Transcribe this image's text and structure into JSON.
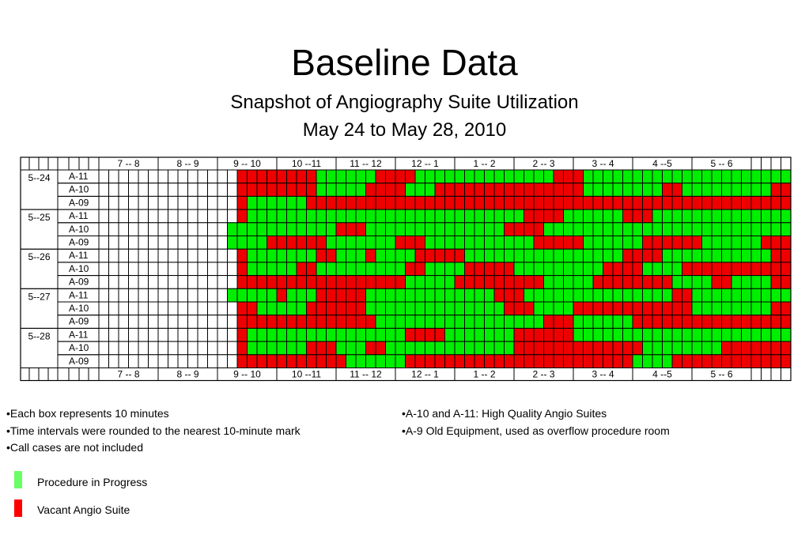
{
  "header": {
    "title": "Baseline Data",
    "subtitle": "Snapshot of Angiography Suite Utilization",
    "date_range": "May 24 to May 28, 2010"
  },
  "notes": {
    "left": [
      "•Each box represents 10  minutes",
      "•Time intervals were rounded to the nearest 10-minute mark",
      "•Call cases are not included"
    ],
    "right": [
      "•A-10 and A-11: High Quality Angio Suites",
      "•A-9 Old Equipment, used as overflow procedure room"
    ]
  },
  "legend": [
    {
      "label": "Procedure in Progress",
      "color": "#66ff66"
    },
    {
      "label": "Vacant Angio Suite",
      "color": "#ff0000"
    }
  ],
  "colors": {
    "in_progress": "#00ee00",
    "vacant": "#ee0000",
    "empty": "#ffffff",
    "border": "#000000"
  },
  "chart_data": {
    "type": "heatmap",
    "title": "",
    "time_labels": [
      "7 -- 8",
      "8 -- 9",
      "9 -- 10",
      "10 --11",
      "11 -- 12",
      "12 -- 1",
      "1 -- 2",
      "2 -- 3",
      "3 -- 4",
      "4 --5",
      "5 -- 6"
    ],
    "legend_codes": {
      "G": "Procedure in Progress",
      "R": "Vacant Angio Suite",
      ".": "no data"
    },
    "days": [
      {
        "label": "5--24",
        "rooms": [
          {
            "room": "A-11",
            "cells": "..............RRRRRRRRGGGGGGRRRRGGGGGGGGGGGGGGRRRGGGGGGGGGGGGGGGGGGGGGGGRRRR.........."
          },
          {
            "room": "A-10",
            "cells": "..............RRRRRRRRGGGGGRRRRGGGRRRRRRRRRRRRRRRGGGGGGGGRRGGGGGGGGGRRRRRRR.........."
          },
          {
            "room": "A-09",
            "cells": "..............RGGGGGGRRRRRRRRRRRRRRRRRRRRRRRRRRRRRRRRRRRRRRRRRRRRRRRRRRRRR.........."
          }
        ]
      },
      {
        "label": "5--25",
        "rooms": [
          {
            "room": "A-11",
            "cells": "..............RGGGGGGGGGGGGGGGGGGGGGGGGGGGGRRRRGGGGGGRRRGGGGGGGGGGGGGGGGGGGGG......."
          },
          {
            "room": "A-10",
            "cells": ".............GGGGGGGGGGGRRRGGGGGGGGGGGGGGRRRRGGGGGGGGGGGGGGGGGGGGGGGGGGGGGG........."
          },
          {
            "room": "A-09",
            "cells": ".............GGGGRRRRRRGGGGGGGRRRGGGGGGGGGGGRRRRRGGGGGGRRRRRRGGGGGGRRRRRRRR.........."
          }
        ]
      },
      {
        "label": "5--26",
        "rooms": [
          {
            "room": "A-11",
            "cells": "..............RGGGGGGGRRGGGRGGGGRRRRRGGGGGGGGGGGGGGGGRRRRGGGGGGGGGGGRRRRRRR.........."
          },
          {
            "room": "A-10",
            "cells": "..............RGGGGGRRGGGGGGGGGRRGGGGRRRRRGGGGGGGGGRRRRGGGGRRRRRRRRRRRRRRRR.........."
          },
          {
            "room": "A-09",
            "cells": "..............RRRRRRRRRRRRRRRRRGGGGGRRRRRRRRRGGGGGRRRRRRRRGGGGRRGGGGRRRRRRR.........."
          }
        ]
      },
      {
        "label": "5--27",
        "rooms": [
          {
            "room": "A-11",
            "cells": ".............GGGGGRGGGRRRRRGGGGGGGGGGGGGRRRGGGGGGGGGGGGGGGRRGGGGGGGGGGGGGGGGGGGG....."
          },
          {
            "room": "A-10",
            "cells": "..............RRGGGGGRRRRRRGGGGGGGGGGGGGGRRRGGGGRRRRRRRRRRRRGGGGGGGGRRRGGGGGGRRGGGG.."
          },
          {
            "room": "A-09",
            "cells": "..............RRRRRRRRRRRRRRGGGGGGGGGGGGGGGGGRRRGGGGGGRRRRRRRRRRRRRRRRRRRRRR.........."
          }
        ]
      },
      {
        "label": "5--28",
        "rooms": [
          {
            "room": "A-11",
            "cells": "..............RGGGGGGGGGGGGGGGGRRRRGGGGGGGRRRRRRGGGGGGGGGGGGGGGGGGGGGGRRRRRR.........."
          },
          {
            "room": "A-10",
            "cells": "..............RGGGGGGRRRGGGRRGGGGGGGGGGGGGRRRRRRRRRRRRRGGGGGGGGRRRRRRRRRRRRR.........."
          },
          {
            "room": "A-09",
            "cells": "..............RRRRRRRRRRRGGGGGGRRRRRRRRRRRRRRRRRRRRRRRGGGGRRRRRRRRRRRRRRRRR.........."
          }
        ]
      }
    ]
  }
}
